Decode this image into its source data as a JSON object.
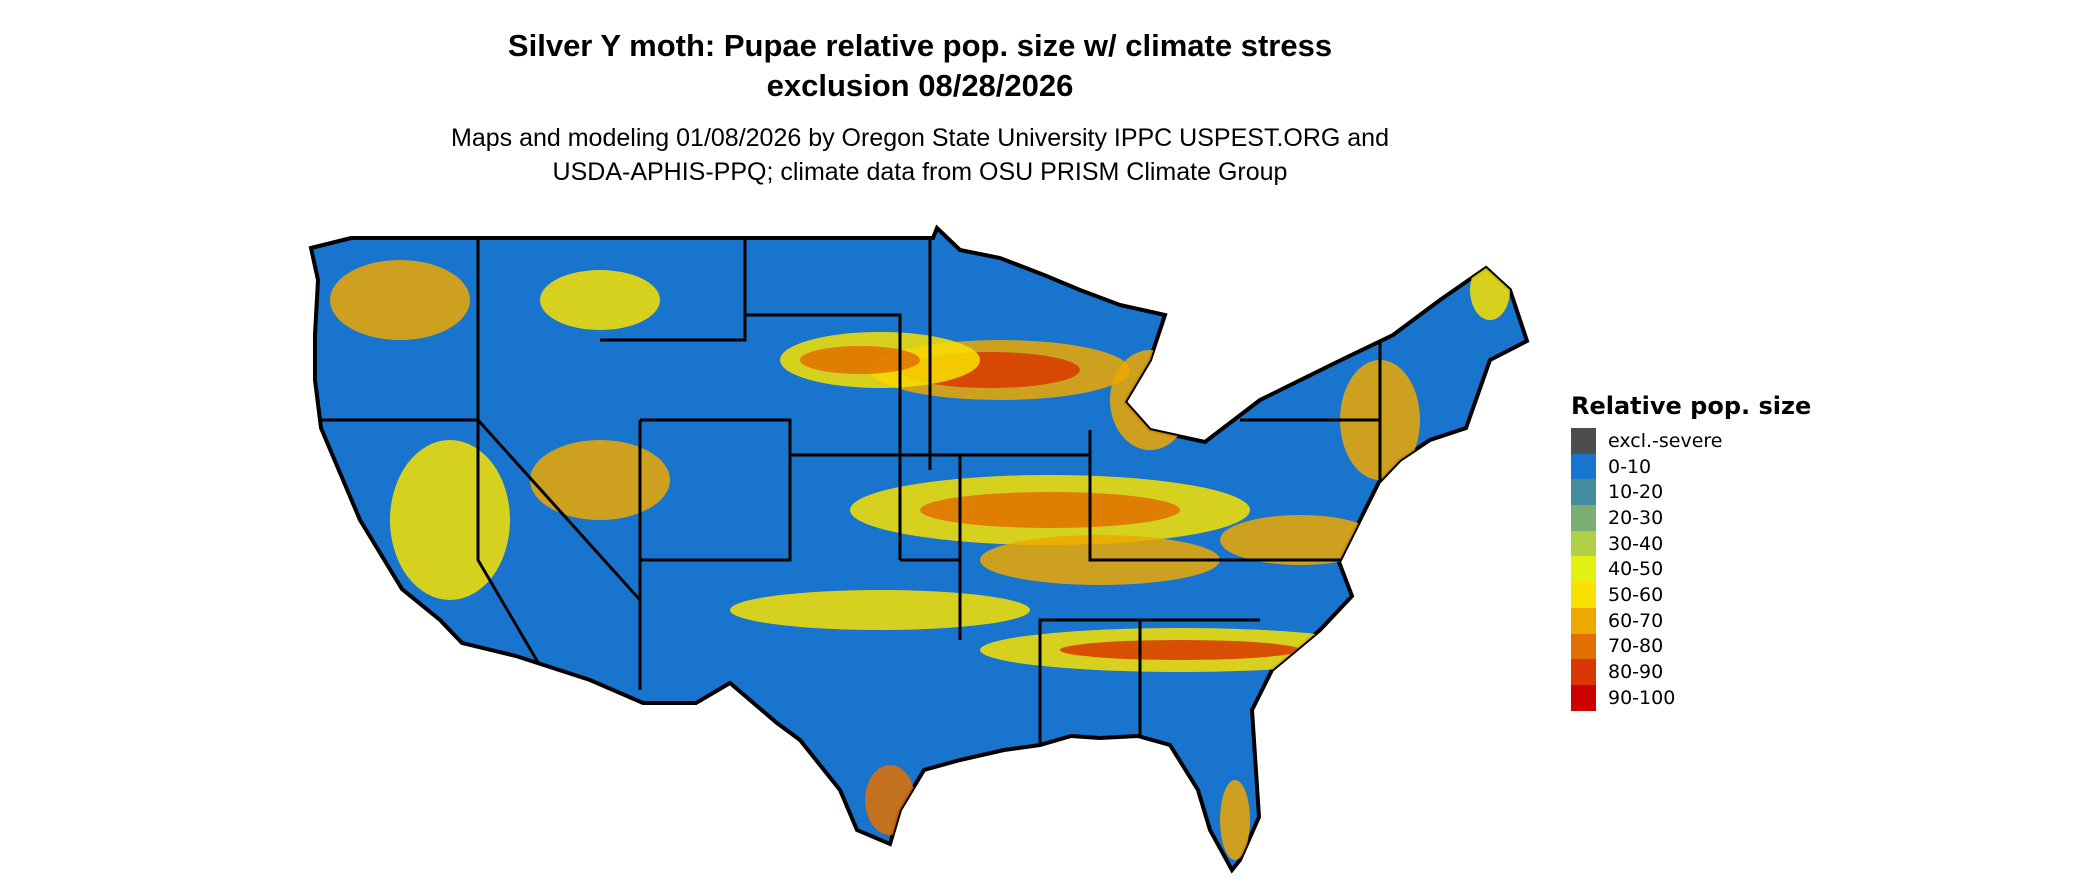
{
  "title": {
    "line1": "Silver Y moth: Pupae relative pop. size w/ climate stress",
    "line2": "exclusion 08/28/2026"
  },
  "subtitle": {
    "line1": "Maps and modeling 01/08/2026 by Oregon State University IPPC USPEST.ORG and",
    "line2": "USDA-APHIS-PPQ; climate data from OSU PRISM Climate Group"
  },
  "legend": {
    "title": "Relative pop. size",
    "items": [
      {
        "label": "excl.-severe",
        "color": "#4d4d4d"
      },
      {
        "label": "0-10",
        "color": "#1874cd"
      },
      {
        "label": "10-20",
        "color": "#458b9e"
      },
      {
        "label": "20-30",
        "color": "#7bae72"
      },
      {
        "label": "30-40",
        "color": "#b0d045"
      },
      {
        "label": "40-50",
        "color": "#e2f014"
      },
      {
        "label": "50-60",
        "color": "#f8e000"
      },
      {
        "label": "60-70",
        "color": "#eea800"
      },
      {
        "label": "70-80",
        "color": "#e27000"
      },
      {
        "label": "80-90",
        "color": "#d83800"
      },
      {
        "label": "90-100",
        "color": "#cd0000"
      }
    ]
  }
}
